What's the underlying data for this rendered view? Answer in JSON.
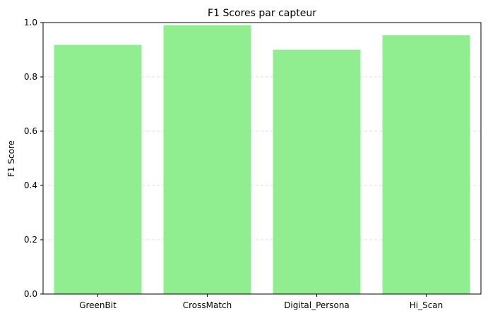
{
  "chart_data": {
    "type": "bar",
    "title": "F1 Scores par capteur",
    "xlabel": "",
    "ylabel": "F1 Score",
    "categories": [
      "GreenBit",
      "CrossMatch",
      "Digital_Persona",
      "Hi_Scan"
    ],
    "values": [
      0.918,
      0.99,
      0.9,
      0.953
    ],
    "ylim": [
      0,
      1
    ],
    "yticks": [
      0.0,
      0.2,
      0.4,
      0.6,
      0.8,
      1.0
    ],
    "ytick_labels": [
      "0.0",
      "0.2",
      "0.4",
      "0.6",
      "0.8",
      "1.0"
    ],
    "grid": "y-axis dashed",
    "bar_color": "#90ee90"
  }
}
